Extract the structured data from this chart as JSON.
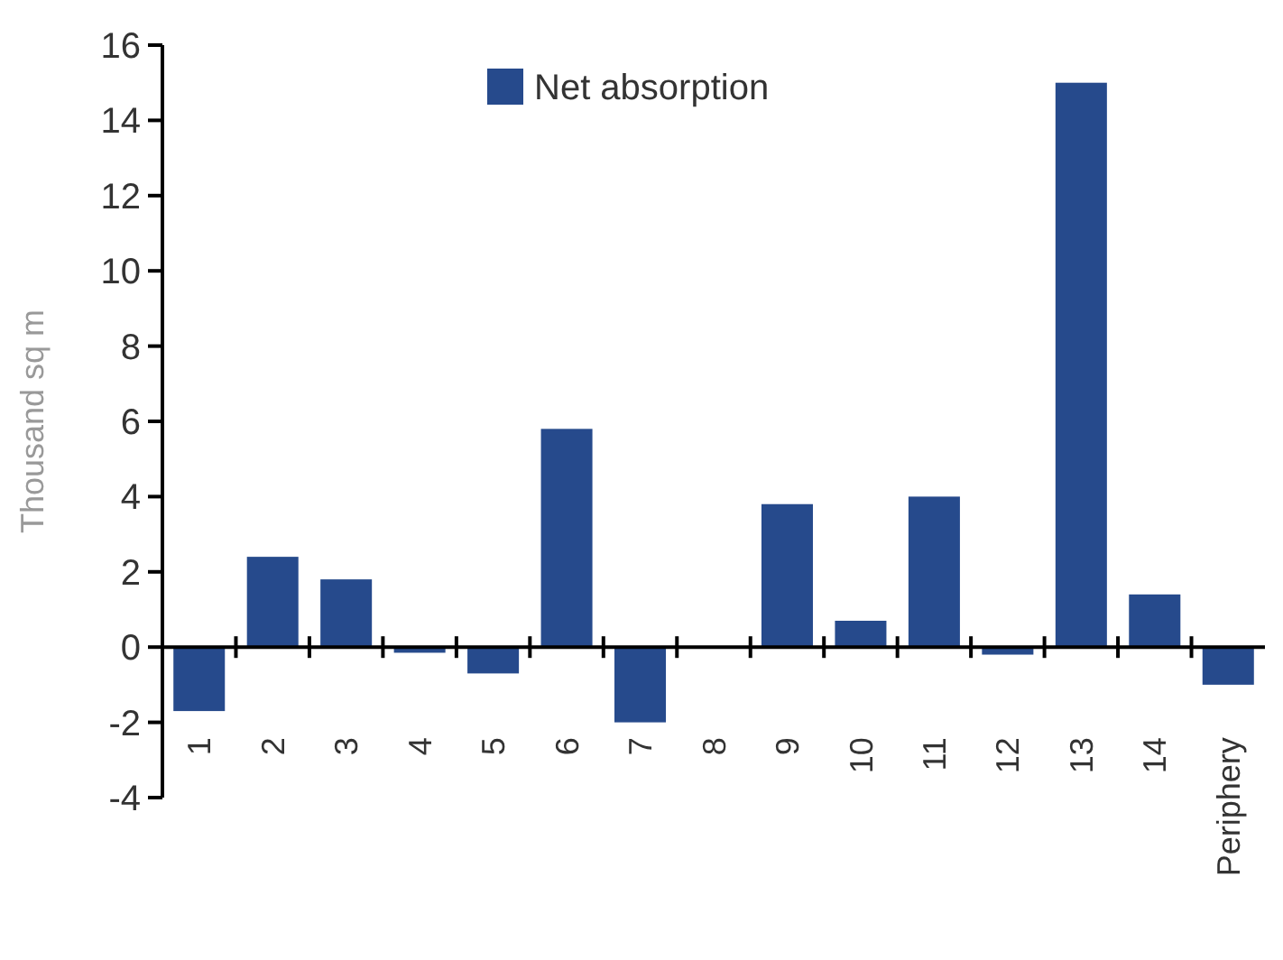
{
  "chart_data": {
    "type": "bar",
    "ylabel": "Thousand sq m",
    "categories": [
      "1",
      "2",
      "3",
      "4",
      "5",
      "6",
      "7",
      "8",
      "9",
      "10",
      "11",
      "12",
      "13",
      "14",
      "Periphery"
    ],
    "series": [
      {
        "name": "Net absorption",
        "color": "#264a8c",
        "values": [
          -1.7,
          2.4,
          1.8,
          -0.15,
          -0.7,
          5.8,
          -2.0,
          0,
          3.8,
          0.7,
          4.0,
          -0.2,
          15.0,
          1.4,
          -1.0
        ]
      }
    ],
    "ylim": [
      -4,
      16
    ],
    "yticks": [
      -4,
      -2,
      0,
      2,
      4,
      6,
      8,
      10,
      12,
      14,
      16
    ],
    "legend": "top"
  }
}
